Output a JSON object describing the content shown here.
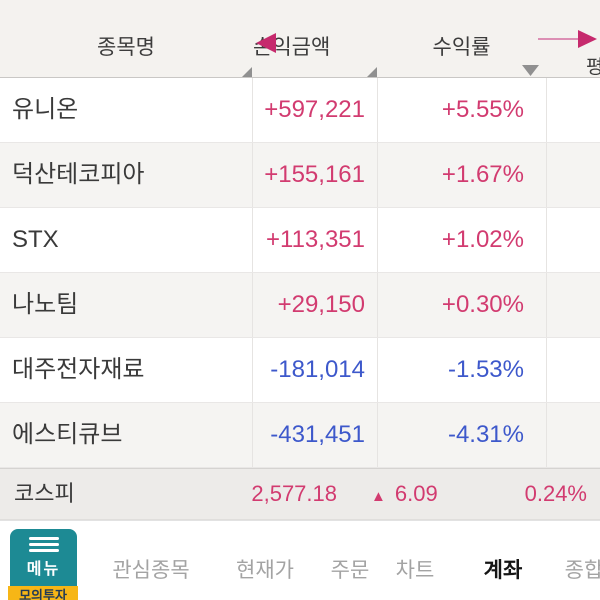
{
  "table": {
    "columns": [
      "종목명",
      "손익금액",
      "수익률",
      "평"
    ],
    "rows": [
      {
        "name": "유니온",
        "amount": "+597,221",
        "rate": "+5.55%",
        "direction": "up"
      },
      {
        "name": "덕산테코피아",
        "amount": "+155,161",
        "rate": "+1.67%",
        "direction": "up"
      },
      {
        "name": "STX",
        "amount": "+113,351",
        "rate": "+1.02%",
        "direction": "up"
      },
      {
        "name": "나노팀",
        "amount": "+29,150",
        "rate": "+0.30%",
        "direction": "up"
      },
      {
        "name": "대주전자재료",
        "amount": "-181,014",
        "rate": "-1.53%",
        "direction": "down"
      },
      {
        "name": "에스티큐브",
        "amount": "-431,451",
        "rate": "-4.31%",
        "direction": "down"
      }
    ]
  },
  "index_bar": {
    "label": "코스피",
    "value": "2,577.18",
    "change_icon": "▲",
    "change": "6.09",
    "change_percent": "0.24%"
  },
  "bottom_nav": {
    "menu_button": {
      "label": "메뉴"
    },
    "badge": "모의투자",
    "items": [
      {
        "label": "관심종목",
        "active": false
      },
      {
        "label": "현재가",
        "active": false
      },
      {
        "label": "주문",
        "active": false
      },
      {
        "label": "차트",
        "active": false
      },
      {
        "label": "계좌",
        "active": true
      },
      {
        "label": "종합",
        "active": false
      }
    ]
  },
  "colors": {
    "positive": "#d23b70",
    "negative": "#3d58cb",
    "accent_teal": "#1d8a94",
    "accent_yellow": "#f7b616",
    "swipe_arrow_pink": "#c62a6d",
    "header_bg": "#f4f2ef",
    "index_bar_bg": "#edebe9"
  }
}
